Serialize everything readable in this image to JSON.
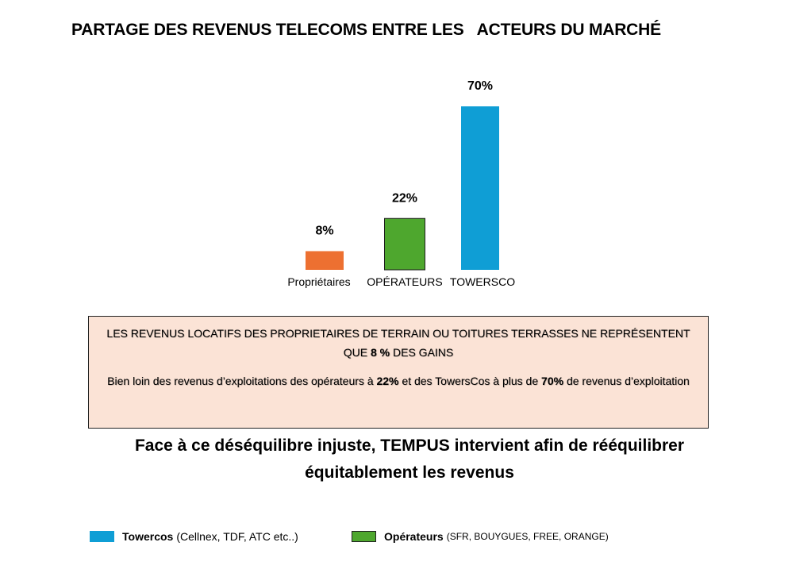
{
  "chart_data": {
    "type": "bar",
    "title": "PARTAGE DES REVENUS TELECOMS ENTRE LES   ACTEURS DU MARCHÉ",
    "categories": [
      "Propriétaires",
      "OPÉRATEURS",
      "TOWERSCO"
    ],
    "values": [
      8,
      22,
      70
    ],
    "data_labels": [
      "8%",
      "22%",
      "70%"
    ],
    "unit": "%",
    "bar_colors": [
      "#ed7031",
      "#4ea72e",
      "#0f9ed5"
    ],
    "ylim": [
      0,
      70
    ],
    "grid": false,
    "legend_placement": "bottom"
  },
  "info_box": {
    "line1_part1": "LES REVENUS LOCATIFS DES PROPRIETAIRES DE TERRAIN OU TOITURES TERRASSES NE REPRÉSENTENT QUE",
    "line1_bold": "8 %",
    "line1_part2": "DES GAINS",
    "line2_part1": "Bien loin des revenus d’exploitations des opérateurs à",
    "line2_bold1": "22%",
    "line2_part2": "et des TowersCos à plus de",
    "line2_bold2": "70%",
    "line2_part3": "de revenus d’exploitation",
    "background": "#fbe3d6"
  },
  "conclusion": {
    "line1": "Face à ce déséquilibre injuste, TEMPUS intervient afin de rééquilibrer",
    "line2": "équitablement les revenus"
  },
  "legend": [
    {
      "name": "Towercos",
      "detail": "(Cellnex, TDF, ATC  etc..)",
      "color": "#0f9ed5"
    },
    {
      "name": "Opérateurs",
      "detail": "(SFR, BOUYGUES, FREE, ORANGE)",
      "color": "#4ea72e"
    }
  ]
}
